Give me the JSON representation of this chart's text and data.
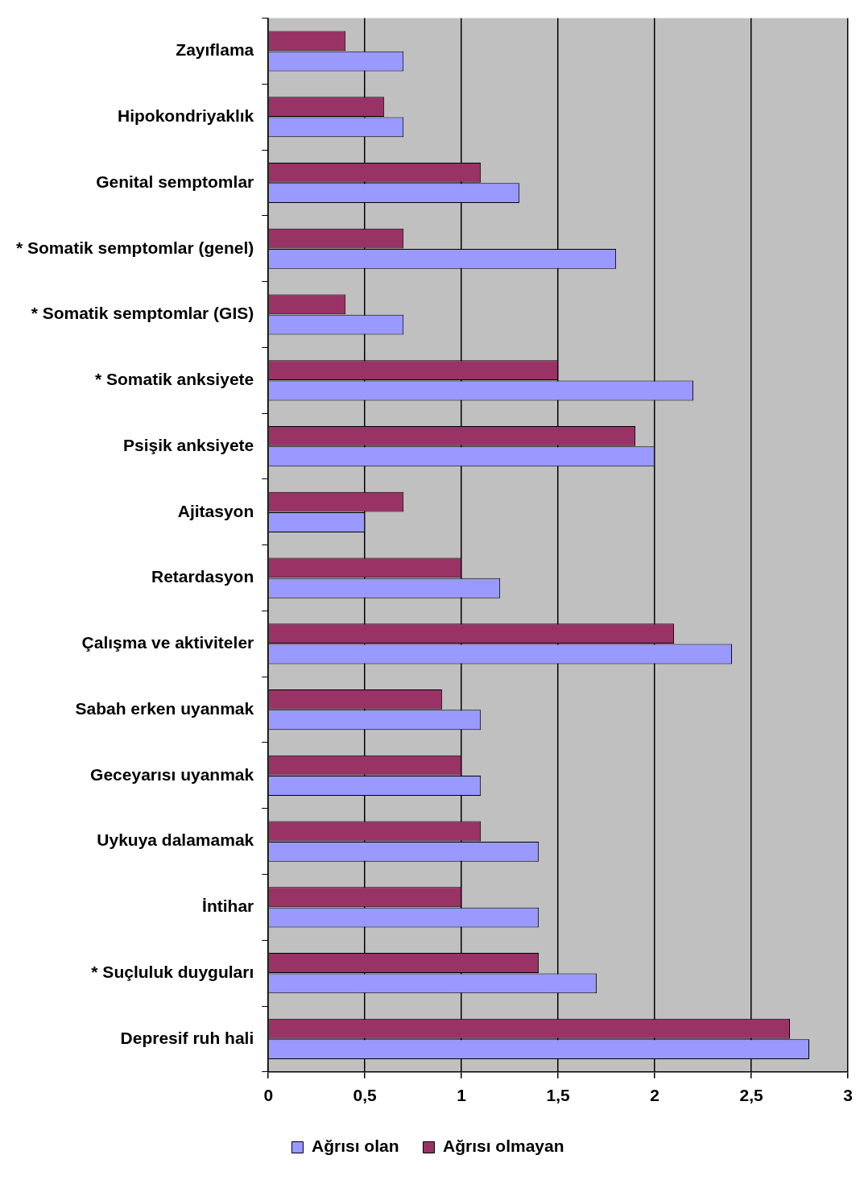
{
  "chart_data": {
    "type": "bar",
    "orientation": "horizontal",
    "categories": [
      "Zayıflama",
      "Hipokondriyaklık",
      "Genital semptomlar",
      "* Somatik semptomlar (genel)",
      "* Somatik semptomlar (GIS)",
      "* Somatik anksiyete",
      "Psişik anksiyete",
      "Ajitasyon",
      "Retardasyon",
      "Çalışma ve aktiviteler",
      "Sabah erken uyanmak",
      "Geceyarısı uyanmak",
      "Uykuya dalamamak",
      "İntihar",
      "* Suçluluk duyguları",
      "Depresif ruh hali"
    ],
    "series": [
      {
        "name": "Ağrısı olan",
        "color": "#9999ff",
        "values": [
          0.7,
          0.7,
          1.3,
          1.8,
          0.7,
          2.2,
          2.0,
          0.5,
          1.2,
          2.4,
          1.1,
          1.1,
          1.4,
          1.4,
          1.7,
          2.8
        ]
      },
      {
        "name": "Ağrısı olmayan",
        "color": "#993366",
        "values": [
          0.4,
          0.6,
          1.1,
          0.7,
          0.4,
          1.5,
          1.9,
          0.7,
          1.0,
          2.1,
          0.9,
          1.0,
          1.1,
          1.0,
          1.4,
          2.7
        ]
      }
    ],
    "xlim": [
      0,
      3
    ],
    "xticks": [
      0,
      {
        "value": 0.5,
        "label": "0,5"
      },
      1,
      {
        "value": 1.5,
        "label": "1,5"
      },
      2,
      {
        "value": 2.5,
        "label": "2,5"
      },
      3
    ],
    "grid": "x",
    "legend": "bottom"
  }
}
